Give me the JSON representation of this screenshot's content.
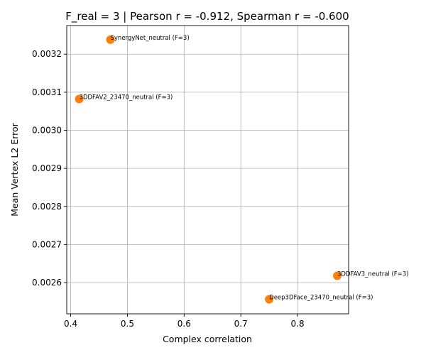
{
  "chart_data": {
    "type": "scatter",
    "title": "F_real = 3 | Pearson r = -0.912, Spearman r = -0.600",
    "xlabel": "Complex correlation",
    "ylabel": "Mean Vertex L2 Error",
    "xlim": [
      0.393,
      0.89
    ],
    "ylim": [
      0.002518,
      0.003275
    ],
    "xticks": [
      0.4,
      0.5,
      0.6,
      0.7,
      0.8
    ],
    "xtick_labels": [
      "0.4",
      "0.5",
      "0.6",
      "0.7",
      "0.8"
    ],
    "yticks": [
      0.0026,
      0.0027,
      0.0028,
      0.0029,
      0.003,
      0.0031,
      0.0032
    ],
    "ytick_labels": [
      "0.0026",
      "0.0027",
      "0.0028",
      "0.0029",
      "0.0030",
      "0.0031",
      "0.0032"
    ],
    "grid": true,
    "marker_color": "#ff7f0e",
    "points": [
      {
        "label": "SynergyNet_neutral (F=3)",
        "x": 0.47,
        "y": 0.003238
      },
      {
        "label": "3DDFAV2_23470_neutral (F=3)",
        "x": 0.415,
        "y": 0.003082
      },
      {
        "label": "3DDFAV3_neutral (F=3)",
        "x": 0.87,
        "y": 0.002618
      },
      {
        "label": "Deep3DFace_23470_neutral (F=3)",
        "x": 0.75,
        "y": 0.002556
      }
    ]
  }
}
